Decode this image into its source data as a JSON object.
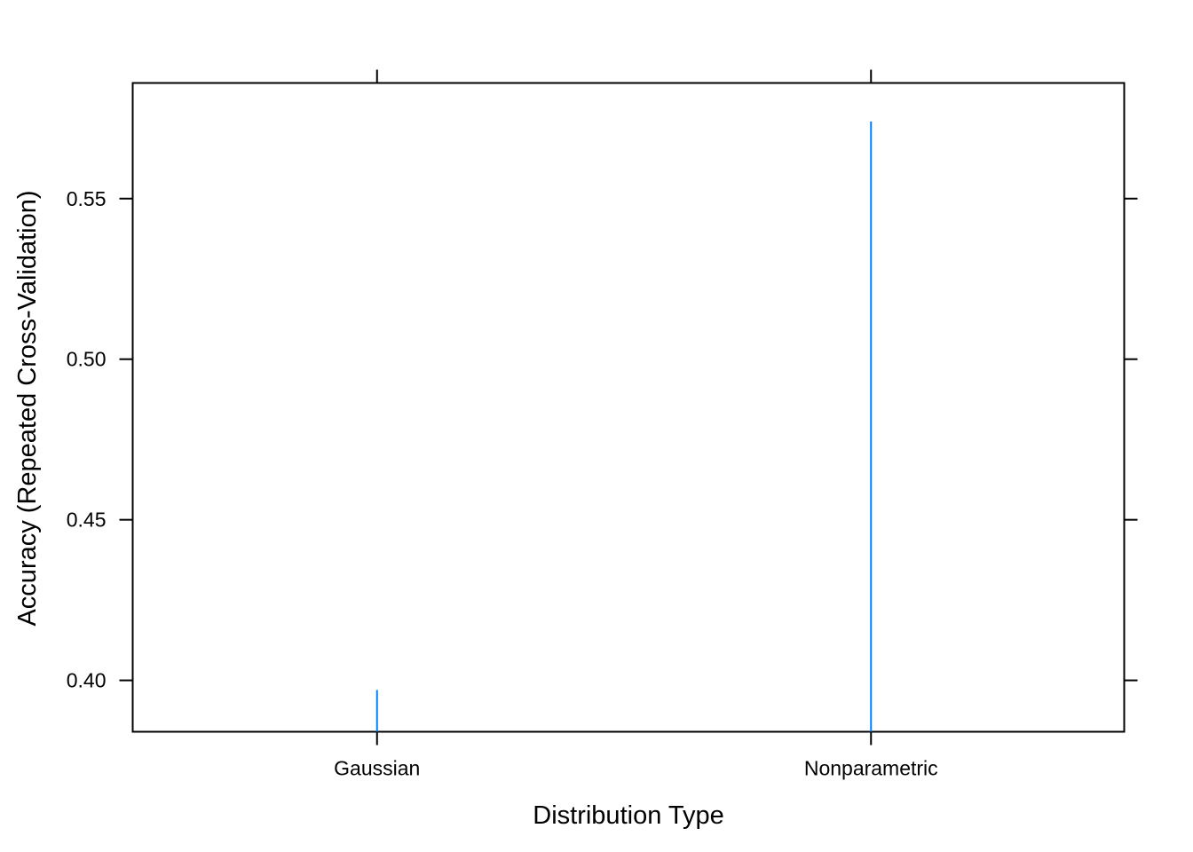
{
  "chart_data": {
    "type": "bar",
    "categories": [
      "Gaussian",
      "Nonparametric"
    ],
    "values": [
      0.397,
      0.574
    ],
    "title": "",
    "xlabel": "Distribution Type",
    "ylabel": "Accuracy (Repeated Cross-Validation)",
    "ylim": [
      0.384,
      0.586
    ],
    "yticks": [
      0.4,
      0.45,
      0.5,
      0.55
    ],
    "ytick_labels": [
      "0.40",
      "0.45",
      "0.50",
      "0.55"
    ],
    "grid": false,
    "legend": "none",
    "series_color": "#0080ff"
  }
}
